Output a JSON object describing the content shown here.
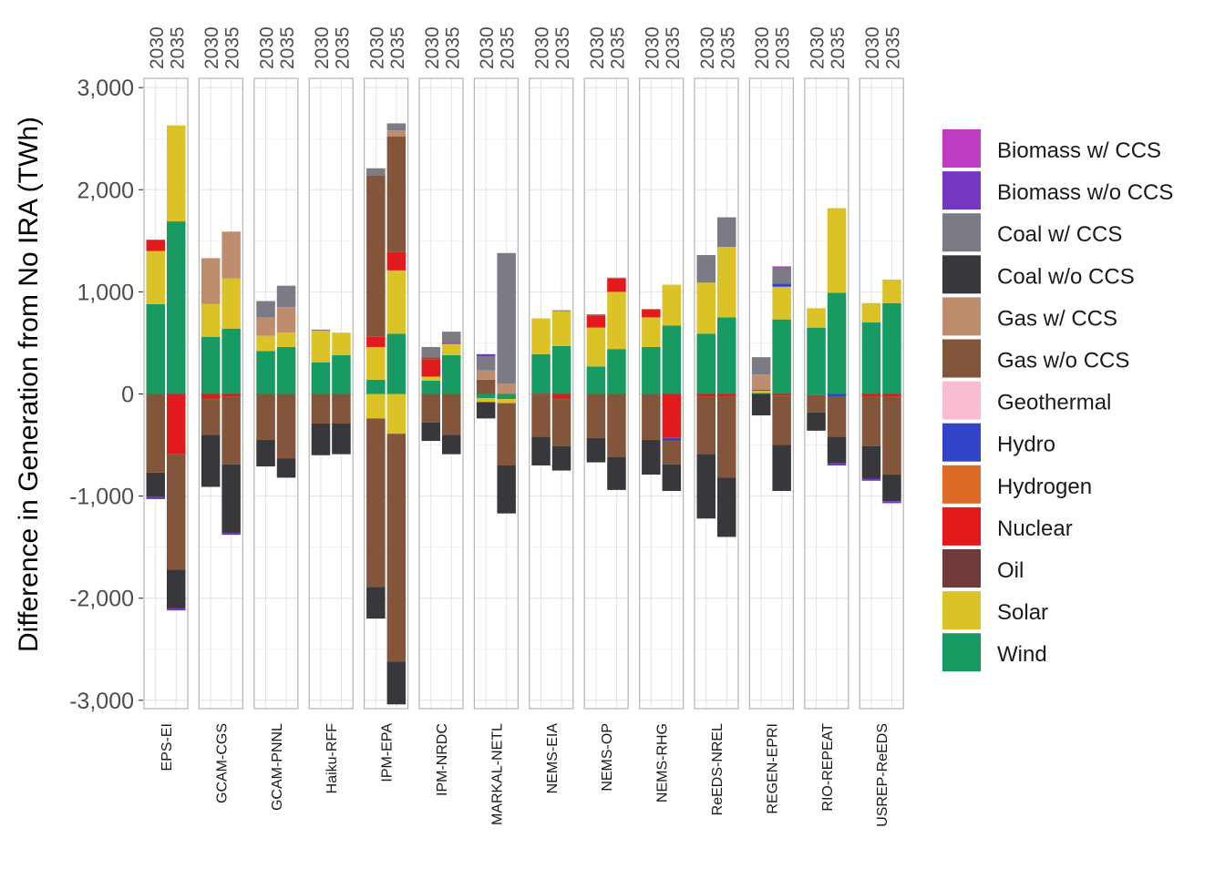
{
  "chart_data": {
    "type": "bar",
    "stacked": true,
    "ylabel": "Difference in Generation from No IRA (TWh)",
    "ylim": [
      -3000,
      3000
    ],
    "yticks": [
      3000,
      2000,
      1000,
      0,
      -1000,
      -2000,
      -3000
    ],
    "ytick_labels": [
      "3,000",
      "2,000",
      "1,000",
      "0",
      "-1,000",
      "-2,000",
      "-3,000"
    ],
    "grid": true,
    "legend_position": "right",
    "years": [
      "2030",
      "2035"
    ],
    "models": [
      "EPS-EI",
      "GCAM-CGS",
      "GCAM-PNNL",
      "Haiku-RFF",
      "IPM-EPA",
      "IPM-NRDC",
      "MARKAL-NETL",
      "NEMS-EIA",
      "NEMS-OP",
      "NEMS-RHG",
      "ReEDS-NREL",
      "REGEN-EPRI",
      "RIO-REPEAT",
      "USREP-ReEDS"
    ],
    "technologies": [
      {
        "name": "Biomass w/ CCS",
        "color": "#C13CC5"
      },
      {
        "name": "Biomass w/o CCS",
        "color": "#7536C2"
      },
      {
        "name": "Coal w/ CCS",
        "color": "#7B7A85"
      },
      {
        "name": "Coal w/o CCS",
        "color": "#38373B"
      },
      {
        "name": "Gas w/ CCS",
        "color": "#BE8D6E"
      },
      {
        "name": "Gas w/o CCS",
        "color": "#83553A"
      },
      {
        "name": "Geothermal",
        "color": "#F9BCD3"
      },
      {
        "name": "Hydro",
        "color": "#3244C8"
      },
      {
        "name": "Hydrogen",
        "color": "#DD6A27"
      },
      {
        "name": "Nuclear",
        "color": "#E31A1C"
      },
      {
        "name": "Oil",
        "color": "#703A3A"
      },
      {
        "name": "Solar",
        "color": "#DBC226"
      },
      {
        "name": "Wind",
        "color": "#189A63"
      }
    ],
    "bars": [
      {
        "model": "EPS-EI",
        "year": "2030",
        "positive": [
          [
            "Wind",
            880
          ],
          [
            "Solar",
            520
          ],
          [
            "Nuclear",
            110
          ]
        ],
        "negative": [
          [
            "Gas w/o CCS",
            770
          ],
          [
            "Coal w/o CCS",
            240
          ],
          [
            "Biomass w/o CCS",
            20
          ]
        ]
      },
      {
        "model": "EPS-EI",
        "year": "2035",
        "positive": [
          [
            "Wind",
            1690
          ],
          [
            "Solar",
            940
          ]
        ],
        "negative": [
          [
            "Nuclear",
            590
          ],
          [
            "Gas w/o CCS",
            1130
          ],
          [
            "Coal w/o CCS",
            380
          ],
          [
            "Biomass w/o CCS",
            20
          ]
        ]
      },
      {
        "model": "GCAM-CGS",
        "year": "2030",
        "positive": [
          [
            "Wind",
            560
          ],
          [
            "Solar",
            320
          ],
          [
            "Gas w/ CCS",
            450
          ]
        ],
        "negative": [
          [
            "Nuclear",
            50
          ],
          [
            "Gas w/o CCS",
            350
          ],
          [
            "Coal w/o CCS",
            510
          ]
        ]
      },
      {
        "model": "GCAM-CGS",
        "year": "2035",
        "positive": [
          [
            "Wind",
            640
          ],
          [
            "Solar",
            490
          ],
          [
            "Gas w/ CCS",
            460
          ]
        ],
        "negative": [
          [
            "Nuclear",
            30
          ],
          [
            "Gas w/o CCS",
            660
          ],
          [
            "Coal w/o CCS",
            670
          ],
          [
            "Biomass w/o CCS",
            20
          ]
        ]
      },
      {
        "model": "GCAM-PNNL",
        "year": "2030",
        "positive": [
          [
            "Wind",
            420
          ],
          [
            "Solar",
            150
          ],
          [
            "Gas w/ CCS",
            180
          ],
          [
            "Coal w/ CCS",
            160
          ]
        ],
        "negative": [
          [
            "Gas w/o CCS",
            450
          ],
          [
            "Coal w/o CCS",
            260
          ]
        ]
      },
      {
        "model": "GCAM-PNNL",
        "year": "2035",
        "positive": [
          [
            "Wind",
            460
          ],
          [
            "Solar",
            140
          ],
          [
            "Gas w/ CCS",
            250
          ],
          [
            "Coal w/ CCS",
            210
          ]
        ],
        "negative": [
          [
            "Gas w/o CCS",
            630
          ],
          [
            "Coal w/o CCS",
            190
          ]
        ]
      },
      {
        "model": "Haiku-RFF",
        "year": "2030",
        "positive": [
          [
            "Wind",
            310
          ],
          [
            "Solar",
            310
          ],
          [
            "Coal w/ CCS",
            10
          ]
        ],
        "negative": [
          [
            "Gas w/o CCS",
            290
          ],
          [
            "Coal w/o CCS",
            310
          ]
        ]
      },
      {
        "model": "Haiku-RFF",
        "year": "2035",
        "positive": [
          [
            "Wind",
            380
          ],
          [
            "Solar",
            220
          ]
        ],
        "negative": [
          [
            "Gas w/o CCS",
            290
          ],
          [
            "Coal w/o CCS",
            300
          ]
        ]
      },
      {
        "model": "IPM-EPA",
        "year": "2030",
        "positive": [
          [
            "Wind",
            140
          ],
          [
            "Solar",
            320
          ],
          [
            "Nuclear",
            100
          ],
          [
            "Gas w/o CCS",
            1580
          ],
          [
            "Coal w/ CCS",
            70
          ]
        ],
        "negative": [
          [
            "Solar",
            240
          ],
          [
            "Gas w/o CCS",
            1650
          ],
          [
            "Coal w/o CCS",
            310
          ]
        ]
      },
      {
        "model": "IPM-EPA",
        "year": "2035",
        "positive": [
          [
            "Wind",
            590
          ],
          [
            "Solar",
            620
          ],
          [
            "Nuclear",
            180
          ],
          [
            "Gas w/o CCS",
            1130
          ],
          [
            "Gas w/ CCS",
            60
          ],
          [
            "Coal w/ CCS",
            70
          ]
        ],
        "negative": [
          [
            "Solar",
            390
          ],
          [
            "Gas w/o CCS",
            2230
          ],
          [
            "Coal w/o CCS",
            420
          ]
        ]
      },
      {
        "model": "IPM-NRDC",
        "year": "2030",
        "positive": [
          [
            "Wind",
            130
          ],
          [
            "Solar",
            40
          ],
          [
            "Nuclear",
            170
          ],
          [
            "Gas w/o CCS",
            20
          ],
          [
            "Coal w/ CCS",
            100
          ]
        ],
        "negative": [
          [
            "Gas w/o CCS",
            280
          ],
          [
            "Coal w/o CCS",
            180
          ]
        ]
      },
      {
        "model": "IPM-NRDC",
        "year": "2035",
        "positive": [
          [
            "Wind",
            380
          ],
          [
            "Solar",
            110
          ],
          [
            "Biomass w/o CCS",
            10
          ],
          [
            "Coal w/ CCS",
            110
          ]
        ],
        "negative": [
          [
            "Gas w/o CCS",
            400
          ],
          [
            "Coal w/o CCS",
            190
          ]
        ]
      },
      {
        "model": "MARKAL-NETL",
        "year": "2030",
        "positive": [
          [
            "Gas w/o CCS",
            140
          ],
          [
            "Gas w/ CCS",
            90
          ],
          [
            "Coal w/ CCS",
            140
          ],
          [
            "Biomass w/o CCS",
            20
          ]
        ],
        "negative": [
          [
            "Wind",
            40
          ],
          [
            "Solar",
            40
          ],
          [
            "Coal w/o CCS",
            160
          ]
        ]
      },
      {
        "model": "MARKAL-NETL",
        "year": "2035",
        "positive": [
          [
            "Gas w/ CCS",
            100
          ],
          [
            "Coal w/ CCS",
            1280
          ]
        ],
        "negative": [
          [
            "Wind",
            50
          ],
          [
            "Solar",
            40
          ],
          [
            "Gas w/o CCS",
            610
          ],
          [
            "Coal w/o CCS",
            470
          ]
        ]
      },
      {
        "model": "NEMS-EIA",
        "year": "2030",
        "positive": [
          [
            "Wind",
            390
          ],
          [
            "Solar",
            350
          ]
        ],
        "negative": [
          [
            "Nuclear",
            10
          ],
          [
            "Gas w/o CCS",
            410
          ],
          [
            "Coal w/o CCS",
            280
          ]
        ]
      },
      {
        "model": "NEMS-EIA",
        "year": "2035",
        "positive": [
          [
            "Wind",
            470
          ],
          [
            "Solar",
            340
          ],
          [
            "Coal w/ CCS",
            10
          ]
        ],
        "negative": [
          [
            "Nuclear",
            50
          ],
          [
            "Gas w/o CCS",
            460
          ],
          [
            "Coal w/o CCS",
            240
          ]
        ]
      },
      {
        "model": "NEMS-OP",
        "year": "2030",
        "positive": [
          [
            "Wind",
            270
          ],
          [
            "Solar",
            380
          ],
          [
            "Nuclear",
            120
          ],
          [
            "Coal w/ CCS",
            10
          ]
        ],
        "negative": [
          [
            "Gas w/o CCS",
            430
          ],
          [
            "Coal w/o CCS",
            240
          ]
        ]
      },
      {
        "model": "NEMS-OP",
        "year": "2035",
        "positive": [
          [
            "Wind",
            440
          ],
          [
            "Solar",
            560
          ],
          [
            "Nuclear",
            130
          ],
          [
            "Coal w/ CCS",
            10
          ]
        ],
        "negative": [
          [
            "Gas w/o CCS",
            620
          ],
          [
            "Coal w/o CCS",
            320
          ]
        ]
      },
      {
        "model": "NEMS-RHG",
        "year": "2030",
        "positive": [
          [
            "Wind",
            460
          ],
          [
            "Solar",
            290
          ],
          [
            "Nuclear",
            80
          ]
        ],
        "negative": [
          [
            "Gas w/o CCS",
            450
          ],
          [
            "Coal w/o CCS",
            340
          ]
        ]
      },
      {
        "model": "NEMS-RHG",
        "year": "2035",
        "positive": [
          [
            "Wind",
            670
          ],
          [
            "Solar",
            400
          ]
        ],
        "negative": [
          [
            "Nuclear",
            430
          ],
          [
            "Hydro",
            30
          ],
          [
            "Gas w/o CCS",
            230
          ],
          [
            "Coal w/o CCS",
            260
          ]
        ]
      },
      {
        "model": "ReEDS-NREL",
        "year": "2030",
        "positive": [
          [
            "Wind",
            590
          ],
          [
            "Solar",
            500
          ],
          [
            "Coal w/ CCS",
            270
          ]
        ],
        "negative": [
          [
            "Nuclear",
            30
          ],
          [
            "Gas w/o CCS",
            560
          ],
          [
            "Coal w/o CCS",
            630
          ]
        ]
      },
      {
        "model": "ReEDS-NREL",
        "year": "2035",
        "positive": [
          [
            "Wind",
            750
          ],
          [
            "Solar",
            690
          ],
          [
            "Coal w/ CCS",
            290
          ]
        ],
        "negative": [
          [
            "Nuclear",
            30
          ],
          [
            "Gas w/o CCS",
            790
          ],
          [
            "Coal w/o CCS",
            580
          ]
        ]
      },
      {
        "model": "REGEN-EPRI",
        "year": "2030",
        "positive": [
          [
            "Wind",
            10
          ],
          [
            "Solar",
            20
          ],
          [
            "Gas w/o CCS",
            10
          ],
          [
            "Gas w/ CCS",
            150
          ],
          [
            "Coal w/ CCS",
            170
          ]
        ],
        "negative": [
          [
            "Coal w/o CCS",
            210
          ]
        ]
      },
      {
        "model": "REGEN-EPRI",
        "year": "2035",
        "positive": [
          [
            "Wind",
            730
          ],
          [
            "Solar",
            320
          ],
          [
            "Hydro",
            30
          ],
          [
            "Coal w/ CCS",
            160
          ],
          [
            "Biomass w/ CCS",
            10
          ]
        ],
        "negative": [
          [
            "Nuclear",
            20
          ],
          [
            "Gas w/o CCS",
            480
          ],
          [
            "Coal w/o CCS",
            450
          ]
        ]
      },
      {
        "model": "RIO-REPEAT",
        "year": "2030",
        "positive": [
          [
            "Wind",
            650
          ],
          [
            "Solar",
            190
          ]
        ],
        "negative": [
          [
            "Wind",
            10
          ],
          [
            "Gas w/o CCS",
            170
          ],
          [
            "Coal w/o CCS",
            180
          ]
        ]
      },
      {
        "model": "RIO-REPEAT",
        "year": "2035",
        "positive": [
          [
            "Wind",
            990
          ],
          [
            "Solar",
            830
          ]
        ],
        "negative": [
          [
            "Hydro",
            30
          ],
          [
            "Gas w/o CCS",
            390
          ],
          [
            "Coal w/o CCS",
            260
          ],
          [
            "Biomass w/o CCS",
            20
          ]
        ]
      },
      {
        "model": "USREP-ReEDS",
        "year": "2030",
        "positive": [
          [
            "Wind",
            700
          ],
          [
            "Solar",
            190
          ]
        ],
        "negative": [
          [
            "Nuclear",
            30
          ],
          [
            "Gas w/o CCS",
            480
          ],
          [
            "Coal w/o CCS",
            320
          ],
          [
            "Biomass w/o CCS",
            20
          ]
        ]
      },
      {
        "model": "USREP-ReEDS",
        "year": "2035",
        "positive": [
          [
            "Wind",
            890
          ],
          [
            "Solar",
            230
          ]
        ],
        "negative": [
          [
            "Nuclear",
            30
          ],
          [
            "Gas w/o CCS",
            760
          ],
          [
            "Coal w/o CCS",
            260
          ],
          [
            "Biomass w/o CCS",
            20
          ]
        ]
      }
    ]
  }
}
